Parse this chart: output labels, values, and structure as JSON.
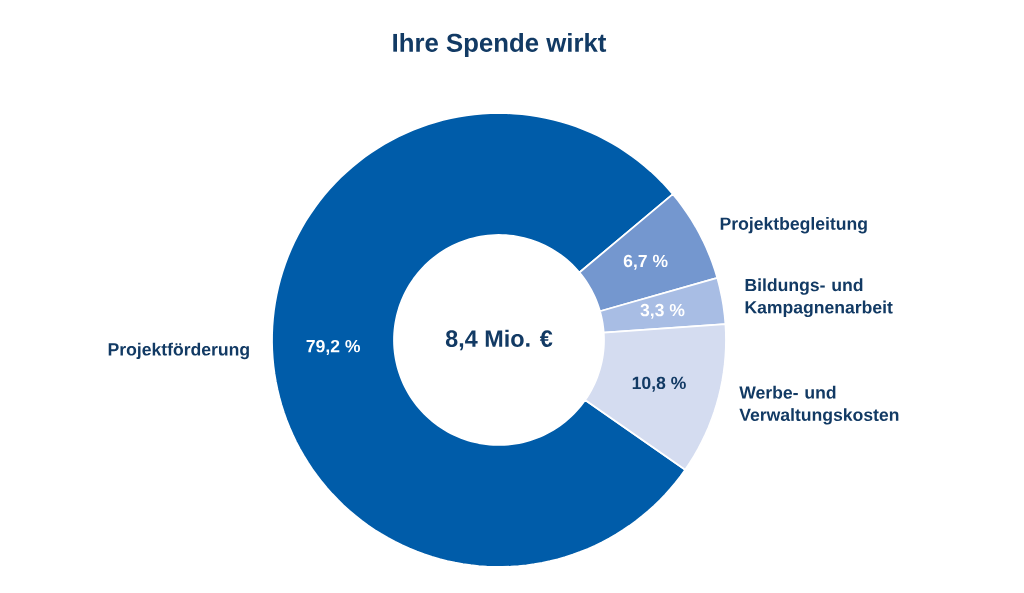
{
  "chart_data": {
    "type": "donut",
    "title": "Ihre Spende wirkt",
    "categories": [
      "Projektförderung",
      "Projektbegleitung",
      "Bildungs- und Kampagnenarbeit",
      "Werbe- und Verwaltungskosten"
    ],
    "values": [
      79.2,
      6.7,
      3.3,
      10.8
    ],
    "value_labels": [
      "79,2 %",
      "6,7 %",
      "3,3 %",
      "10,8 %"
    ],
    "colors": [
      "#005ca9",
      "#7497cf",
      "#a8bde4",
      "#d4dcf0"
    ],
    "annotations": [
      "8,4 Mio. €"
    ]
  }
}
